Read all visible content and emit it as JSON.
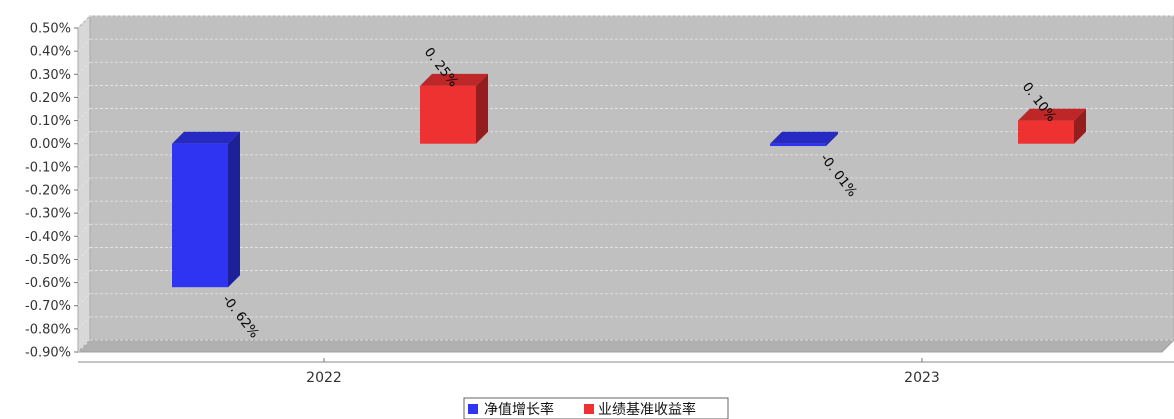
{
  "chart_data": {
    "type": "bar",
    "title": "",
    "xlabel": "",
    "ylabel": "",
    "categories": [
      "2022",
      "2023"
    ],
    "series": [
      {
        "name": "净值增长率",
        "color": "#2f34f2",
        "values": [
          -0.62,
          -0.01
        ],
        "labels": [
          "-0. 62%",
          "-0. 01%"
        ]
      },
      {
        "name": "业绩基准收益率",
        "color": "#ee3131",
        "values": [
          0.25,
          0.1
        ],
        "labels": [
          "0. 25%",
          "0. 10%"
        ]
      }
    ],
    "ylim": [
      -0.9,
      0.5
    ],
    "yticks": [
      "0.50%",
      "0.40%",
      "0.30%",
      "0.20%",
      "0.10%",
      "0.00%",
      "-0.10%",
      "-0.20%",
      "-0.30%",
      "-0.40%",
      "-0.50%",
      "-0.60%",
      "-0.70%",
      "-0.80%",
      "-0.90%"
    ],
    "grid": true,
    "legend": "bottom-center",
    "plot_background": "#c0c0c0"
  }
}
